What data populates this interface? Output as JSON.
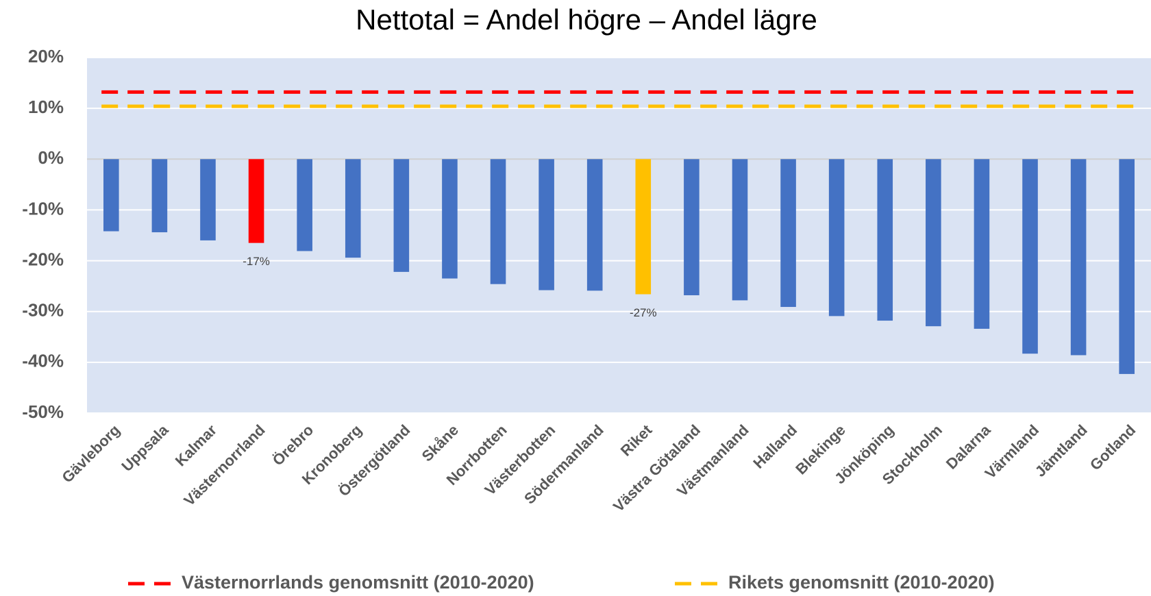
{
  "chart_data": {
    "type": "bar",
    "title": "Nettotal = Andel högre – Andel lägre",
    "categories": [
      "Gävleborg",
      "Uppsala",
      "Kalmar",
      "Västernorrland",
      "Örebro",
      "Kronoberg",
      "Östergötland",
      "Skåne",
      "Norrbotten",
      "Västerbotten",
      "Södermanland",
      "Riket",
      "Västra Götaland",
      "Västmanland",
      "Halland",
      "Blekinge",
      "Jönköping",
      "Stockholm",
      "Dalarna",
      "Värmland",
      "Jämtland",
      "Gotland"
    ],
    "values": [
      -14.2,
      -14.4,
      -16.0,
      -16.5,
      -18.1,
      -19.4,
      -22.2,
      -23.5,
      -24.6,
      -25.8,
      -25.9,
      -26.6,
      -26.8,
      -27.8,
      -29.1,
      -30.9,
      -31.8,
      -32.9,
      -33.4,
      -38.3,
      -38.6,
      -42.3
    ],
    "value_labels": [
      null,
      null,
      null,
      "-17%",
      null,
      null,
      null,
      null,
      null,
      null,
      null,
      "-27%",
      null,
      null,
      null,
      null,
      null,
      null,
      null,
      null,
      null,
      null
    ],
    "colors": [
      "#4472c4",
      "#4472c4",
      "#4472c4",
      "#ff0000",
      "#4472c4",
      "#4472c4",
      "#4472c4",
      "#4472c4",
      "#4472c4",
      "#4472c4",
      "#4472c4",
      "#ffc000",
      "#4472c4",
      "#4472c4",
      "#4472c4",
      "#4472c4",
      "#4472c4",
      "#4472c4",
      "#4472c4",
      "#4472c4",
      "#4472c4",
      "#4472c4"
    ],
    "reference_lines": [
      {
        "name": "Västernorrlands genomsnitt (2010-2020)",
        "color": "#ff0000",
        "value": 13.2
      },
      {
        "name": "Rikets genomsnitt (2010-2020)",
        "color": "#ffc000",
        "value": 10.4
      }
    ],
    "ylim": [
      -50,
      20
    ],
    "yticks": [
      {
        "value": -50,
        "label": "-50%"
      },
      {
        "value": -40,
        "label": "-40%"
      },
      {
        "value": -30,
        "label": "-30%"
      },
      {
        "value": -20,
        "label": "-20%"
      },
      {
        "value": -10,
        "label": "-10%"
      },
      {
        "value": 0,
        "label": "0%"
      },
      {
        "value": 10,
        "label": "10%"
      },
      {
        "value": 20,
        "label": "20%"
      }
    ],
    "grid": true,
    "plot_background": "#dae3f3"
  }
}
